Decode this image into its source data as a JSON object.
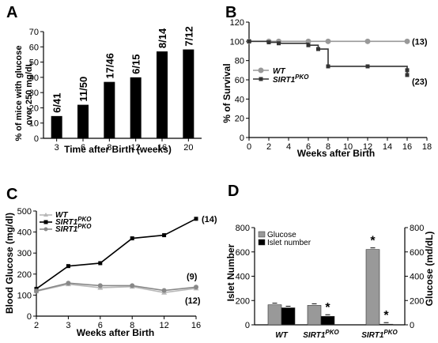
{
  "chart_data": [
    {
      "panel": "A",
      "type": "bar",
      "categories": [
        "3",
        "6",
        "8",
        "12",
        "16",
        "20"
      ],
      "values": [
        14.6,
        22,
        37,
        40,
        57,
        58.3
      ],
      "labels": [
        "6/41",
        "11/50",
        "17/46",
        "6/15",
        "8/14",
        "7/12"
      ],
      "ylabel": "% of mice with glucose over 250 mg/dL",
      "xlabel": "Time after Birth (weeks)",
      "ylim": [
        0,
        70
      ],
      "yticks": [
        0,
        10,
        20,
        30,
        40,
        50,
        60,
        70
      ],
      "color": "#000000"
    },
    {
      "panel": "B",
      "type": "line",
      "xlabel": "Weeks after Birth",
      "ylabel": "% of Survival",
      "xlim": [
        0,
        18
      ],
      "ylim": [
        0,
        120
      ],
      "xticks": [
        0,
        2,
        4,
        6,
        8,
        10,
        12,
        14,
        16,
        18
      ],
      "yticks": [
        0,
        20,
        40,
        60,
        80,
        100,
        120
      ],
      "series": [
        {
          "name": "WT",
          "color": "#999999",
          "step": true,
          "x": [
            0,
            2,
            3,
            6,
            8,
            12,
            16
          ],
          "y": [
            100,
            100,
            100,
            100,
            100,
            100,
            100
          ],
          "n": "(13)"
        },
        {
          "name": "SIRT1PKO",
          "name_main": "SIRT1",
          "name_sup": "PKO",
          "color": "#333333",
          "step": true,
          "x": [
            0,
            2,
            3,
            6,
            7,
            8,
            12,
            16,
            16
          ],
          "y": [
            100,
            99,
            98,
            96,
            92,
            74,
            74,
            70,
            65
          ],
          "n": "(23)"
        }
      ]
    },
    {
      "panel": "C",
      "type": "line",
      "xlabel": "Weeks after Birth",
      "ylabel": "Blood Glucose (mg/dl)",
      "categories": [
        "2",
        "3",
        "6",
        "8",
        "12",
        "16"
      ],
      "ylim": [
        0,
        500
      ],
      "yticks": [
        0,
        100,
        200,
        300,
        400,
        500
      ],
      "series": [
        {
          "name": "WT",
          "color": "#b8b8b8",
          "values": [
            118,
            152,
            135,
            140,
            112,
            132
          ],
          "n": "(9)"
        },
        {
          "name": "SIRT1PKO",
          "name_main": "SIRT1",
          "name_sup": "PKO",
          "color": "#000000",
          "values": [
            130,
            238,
            252,
            370,
            385,
            463
          ],
          "n": "(14)"
        },
        {
          "name": "SIRT1PKO",
          "name_main": "SIRT1",
          "name_sup": "PKO",
          "color": "#888888",
          "values": [
            120,
            157,
            145,
            145,
            122,
            138
          ],
          "n": "(12)"
        }
      ]
    },
    {
      "panel": "D",
      "type": "bar",
      "groups": [
        {
          "name": "WT",
          "main": "WT",
          "sup": ""
        },
        {
          "name": "SIRT1PKO",
          "main": "SIRT1",
          "sup": "PKO"
        },
        {
          "name": "SIRT1PKO",
          "main": "SIRT1",
          "sup": "PKO"
        }
      ],
      "series": [
        {
          "name": "Glucose",
          "color": "#999999",
          "axis": "right",
          "values": [
            165,
            160,
            620
          ],
          "stars": [
            false,
            false,
            true
          ]
        },
        {
          "name": "Islet number",
          "color": "#000000",
          "axis": "left",
          "values": [
            140,
            70,
            5
          ],
          "stars": [
            false,
            true,
            true
          ]
        }
      ],
      "ylabel_left": "Islet Number",
      "ylabel_right": "Glucose (md/dL)",
      "ylim": [
        0,
        800
      ],
      "yticks": [
        0,
        200,
        400,
        600,
        800
      ]
    }
  ],
  "labels": {
    "panelA": "A",
    "panelB": "B",
    "panelC": "C",
    "panelD": "D",
    "a_ylabel1": "% of mice with glucose",
    "a_ylabel2": "over 250 mg/dL",
    "a_xlabel": "Time after Birth (weeks)",
    "b_xlabel": "Weeks after Birth",
    "b_ylabel": "% of Survival",
    "c_xlabel": "Weeks after Birth",
    "c_ylabel": "Blood Glucose (mg/dl)",
    "d_ylabel_left": "Islet Number",
    "d_ylabel_right": "Glucose (md/dL)",
    "d_leg1": "Glucose",
    "d_leg2": "Islet number"
  }
}
